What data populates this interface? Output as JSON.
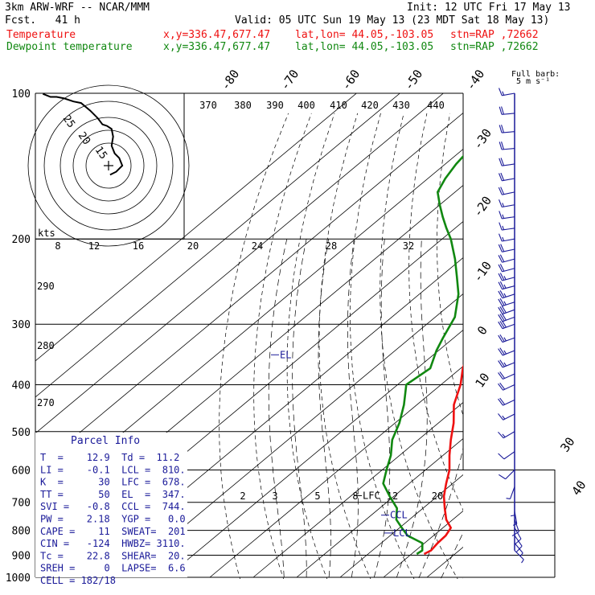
{
  "header": {
    "model": "3km ARW-WRF -- NCAR/MMM",
    "init": "Init: 12 UTC Fri 17 May 13",
    "fcst": "Fcst.   41 h",
    "valid": "Valid: 05 UTC Sun 19 May 13 (23 MDT Sat 18 May 13)",
    "legend": [
      {
        "name": "Temperature",
        "loc": "x,y=336.47,677.47",
        "latlon": "lat,lon= 44.05,-103.05",
        "stn": "stn=RAP ,72662",
        "color": "#ee1111"
      },
      {
        "name": "Dewpoint temperature",
        "loc": "x,y=336.47,677.47",
        "latlon": "lat,lon= 44.05,-103.05",
        "stn": "stn=RAP ,72662",
        "color": "#118811"
      }
    ]
  },
  "colors": {
    "temperature": "#ee1111",
    "dewpoint": "#118811",
    "parcel_label": "#1a1a99",
    "wind": "#1a1a99",
    "isobar": "#000000"
  },
  "chart_data": {
    "type": "line",
    "skew": "skew-T log-p",
    "pressure_axis": {
      "ticks": [
        100,
        200,
        300,
        400,
        500,
        600,
        700,
        800,
        900,
        1000
      ],
      "scale": "log",
      "range": [
        100,
        1000
      ]
    },
    "isotherm_labels": [
      "-80",
      "-70",
      "-60",
      "-50",
      "-40",
      "-30",
      "-20",
      "-10",
      "0",
      "10",
      "20",
      "30",
      "40"
    ],
    "isotherm_values": [
      -80,
      -70,
      -60,
      -50,
      -40,
      -30,
      -20,
      -10,
      0,
      10,
      20,
      30,
      40
    ],
    "theta_e_labels": [
      "370",
      "380",
      "390",
      "400",
      "410",
      "420",
      "430",
      "440"
    ],
    "theta_labels": [
      "290",
      "280",
      "270"
    ],
    "mixing_ratio_labels": [
      "2",
      "3",
      "5",
      "8",
      "12",
      "20"
    ],
    "series": [
      {
        "name": "Temperature",
        "pressure": [
          895,
          880,
          850,
          820,
          790,
          760,
          720,
          680,
          640,
          600,
          560,
          520,
          480,
          440,
          400,
          370,
          340,
          320,
          290,
          260,
          240,
          220,
          200,
          190,
          180,
          170,
          160,
          150,
          140,
          130,
          120,
          110,
          100
        ],
        "values": [
          12.9,
          13.5,
          13.0,
          12.8,
          11.8,
          8.5,
          5.0,
          1.5,
          -1.5,
          -4.5,
          -8.5,
          -12.5,
          -16.5,
          -21.5,
          -25.5,
          -29.5,
          -33.0,
          -35.0,
          -39.5,
          -45.0,
          -50.5,
          -57.0,
          -61.5,
          -63.5,
          -64.5,
          -65.5,
          -65.5,
          -66.5,
          -68.0,
          -70.5,
          -71.5,
          -73.0,
          -74.5
        ]
      },
      {
        "name": "Dewpoint temperature",
        "pressure": [
          895,
          880,
          850,
          820,
          790,
          760,
          720,
          680,
          640,
          600,
          560,
          520,
          480,
          440,
          400,
          370,
          340,
          320,
          290,
          260,
          240,
          220,
          200,
          190,
          180,
          170,
          160,
          150,
          140,
          130,
          120,
          110,
          100
        ],
        "values": [
          11.2,
          11.5,
          9.5,
          4.0,
          0.5,
          -3.0,
          -6.0,
          -11.0,
          -16.0,
          -19.0,
          -22.0,
          -26.0,
          -29.0,
          -33.0,
          -38.0,
          -37.0,
          -40.5,
          -42.5,
          -45.5,
          -51.0,
          -56.0,
          -61.5,
          -68.0,
          -72.0,
          -76.0,
          -80.0,
          -84.0,
          -86.0,
          -87.5,
          -88.5,
          -90.0,
          -91.0,
          -91.0
        ]
      }
    ],
    "parcel_levels": [
      {
        "label": "LFC",
        "pressure": 678
      },
      {
        "label": "CCL",
        "pressure": 744
      },
      {
        "label": "LCL",
        "pressure": 810
      },
      {
        "label": "EL",
        "pressure": 347
      }
    ],
    "wind_profile": {
      "label": "Full barb:",
      "unit": "5 m s⁻¹",
      "pressure": [
        100,
        110,
        120,
        130,
        140,
        150,
        160,
        170,
        180,
        190,
        200,
        210,
        220,
        230,
        240,
        250,
        260,
        270,
        280,
        290,
        300,
        320,
        340,
        360,
        380,
        400,
        430,
        460,
        500,
        550,
        600,
        650,
        700,
        730,
        760,
        790,
        820,
        850,
        880
      ],
      "speed": [
        15,
        18,
        20,
        22,
        22,
        20,
        18,
        16,
        15,
        15,
        16,
        18,
        20,
        22,
        24,
        25,
        26,
        27,
        28,
        28,
        28,
        27,
        25,
        24,
        22,
        20,
        18,
        16,
        13,
        10,
        8,
        6,
        5,
        6,
        8,
        10,
        9,
        7,
        5
      ],
      "direction": [
        260,
        265,
        265,
        265,
        262,
        260,
        258,
        260,
        262,
        262,
        260,
        258,
        255,
        255,
        255,
        255,
        252,
        252,
        250,
        250,
        250,
        250,
        248,
        248,
        246,
        245,
        245,
        243,
        240,
        235,
        225,
        200,
        180,
        170,
        160,
        150,
        145,
        140,
        135
      ]
    },
    "hodograph": {
      "unit": "kts",
      "ring_labels": [
        "15",
        "20",
        "25"
      ],
      "ring_values": [
        15,
        20,
        25
      ],
      "u": [
        0.5,
        2.5,
        4.5,
        3.5,
        2.0,
        1.0,
        1.5,
        1.0,
        -0.5,
        -2.0,
        -3.5,
        -6.0,
        -9.0,
        -11.5,
        -14.5,
        -17.0,
        -19.0,
        -21.5
      ],
      "v": [
        -3.0,
        -2.0,
        0.0,
        2.5,
        4.0,
        6.5,
        9.5,
        12.0,
        13.0,
        13.5,
        15.5,
        18.0,
        20.5,
        21.0,
        22.0,
        22.5,
        22.5,
        23.5
      ]
    },
    "cell_vector": {
      "direction": 182,
      "speed": 18
    },
    "hodograph_scale_labels": [
      "8",
      "12",
      "16",
      "20",
      "24",
      "28",
      "32"
    ],
    "hodograph_scale_values": [
      8,
      12,
      16,
      20,
      24,
      28,
      32
    ],
    "isotherm_side_labels": [
      "-30",
      "-20",
      "-10",
      "0",
      "10"
    ],
    "isotherm_side_values": [
      -30,
      -20,
      -10,
      0,
      10
    ]
  },
  "parcel_info": {
    "title": "Parcel Info",
    "rows": [
      "T  =    12.9  Td =  11.2",
      "LI =    -0.1  LCL =  810.",
      "K  =      30  LFC =  678.",
      "TT =      50  EL  =  347.",
      "SVI =   -0.8  CCL =  744.",
      "PW =    2.18  YGP =   0.0",
      "CAPE =    11  SWEAT=  201",
      "CIN =   -124  HWBZ= 3110.",
      "Tc =    22.8  SHEAR=  20.",
      "SREH =     0  LAPSE=  6.6",
      "CELL = 182/18"
    ]
  }
}
